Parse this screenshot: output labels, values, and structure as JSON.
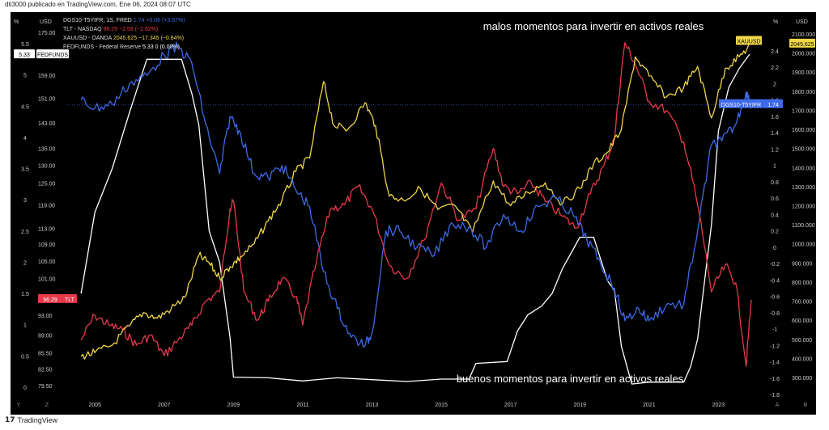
{
  "header": {
    "text": "dti3000 publicado en TradingView.com, Ene 06, 2024 08:07 UTC"
  },
  "footer": {
    "logo": "17",
    "brand": "TradingView"
  },
  "chart_data": {
    "type": "line",
    "x_ticks": [
      "2005",
      "2007",
      "2009",
      "2011",
      "2013",
      "2015",
      "2017",
      "2019",
      "2021",
      "2023"
    ],
    "annotations": {
      "top": "malos momentos para invertir en activos reales",
      "bottom": "buenos momentos para invertir en activos reales"
    },
    "legend": [
      {
        "name": "DGS10-T5YIFR, 1S, FRED",
        "value": "1.74",
        "change": "+0.06 (+3.57%)",
        "color": "#3e6ae8"
      },
      {
        "name": "TLT - NASDAQ",
        "value": "96.29",
        "change": "−2.59 (−2.62%)",
        "color": "#e8394b"
      },
      {
        "name": "XAUUSD - OANDA",
        "value": "2045.625",
        "change": "−17.345 (−0.84%)",
        "color": "#f0d64a"
      },
      {
        "name": "FEDFUNDS - Federal Reserve",
        "value": "5.33",
        "change": "0 (0.00%)",
        "color": "#ffffff"
      }
    ],
    "left_axis_fed": {
      "unit": "%",
      "ticks": [
        "5.5",
        "5",
        "4.5",
        "4",
        "3.5",
        "3",
        "2.5",
        "2",
        "1.5",
        "1",
        "0.5",
        "0"
      ],
      "values": [
        5.5,
        5,
        4.5,
        4,
        3.5,
        3,
        2.5,
        2,
        1.5,
        1,
        0.5,
        0
      ]
    },
    "left_axis_tlt": {
      "unit": "USD",
      "ticks": [
        "175.00",
        "167.00",
        "159.00",
        "151.00",
        "143.00",
        "135.00",
        "130.00",
        "125.00",
        "119.00",
        "113.00",
        "109.00",
        "105.00",
        "101.00",
        "93.00",
        "89.00",
        "85.50",
        "82.50",
        "79.50"
      ],
      "values": [
        175,
        167,
        159,
        151,
        143,
        135,
        130,
        125,
        119,
        113,
        109,
        105,
        101,
        93,
        89,
        85.5,
        82.5,
        79.5
      ]
    },
    "right_axis_spread": {
      "unit": "%",
      "ticks": [
        "2.4",
        "2.2",
        "2",
        "1.8",
        "1.6",
        "1.4",
        "1.2",
        "1",
        "0.8",
        "0.6",
        "0.4",
        "0.2",
        "0",
        "-0.2",
        "-0.4",
        "-0.6",
        "-0.8",
        "-1",
        "-1.2",
        "-1.4",
        "-1.6",
        "-1.8"
      ],
      "values": [
        2.4,
        2.2,
        2,
        1.8,
        1.6,
        1.4,
        1.2,
        1,
        0.8,
        0.6,
        0.4,
        0.2,
        0,
        -0.2,
        -0.4,
        -0.6,
        -0.8,
        -1,
        -1.2,
        -1.4,
        -1.6,
        -1.8
      ]
    },
    "right_axis_gold": {
      "unit": "USD",
      "ticks": [
        "2100.000",
        "2000.000",
        "1900.000",
        "1800.000",
        "1700.000",
        "1600.000",
        "1500.000",
        "1400.000",
        "1300.000",
        "1200.000",
        "1100.000",
        "1000.000",
        "900.000",
        "800.000",
        "700.000",
        "600.000",
        "500.000",
        "400.000",
        "300.000"
      ],
      "values": [
        2100,
        2000,
        1900,
        1800,
        1700,
        1600,
        1500,
        1400,
        1300,
        1200,
        1100,
        1000,
        900,
        800,
        700,
        600,
        500,
        400,
        300
      ]
    },
    "price_labels": {
      "fed": "5.33",
      "fed_name": "FEDFUNDS",
      "tlt": "96.29",
      "tlt_name": "TLT",
      "gold": "2045.625",
      "gold_name": "XAUUSD",
      "spread": "1.74",
      "spread_name": "DGS10-T5YIFR"
    },
    "corner_labels": {
      "bl1": "Y",
      "bl2": "Z",
      "br1": "A",
      "br2": "B"
    },
    "series": [
      {
        "name": "FEDFUNDS",
        "color": "#ffffff",
        "x": [
          2004.6,
          2005.0,
          2005.5,
          2006.0,
          2006.5,
          2007.0,
          2007.5,
          2007.8,
          2008.0,
          2008.3,
          2008.6,
          2008.9,
          2009.0,
          2010.0,
          2011.0,
          2012.0,
          2013.0,
          2014.0,
          2015.0,
          2015.8,
          2016.0,
          2016.9,
          2017.2,
          2017.5,
          2017.9,
          2018.2,
          2018.5,
          2018.8,
          2019.0,
          2019.4,
          2019.8,
          2020.0,
          2020.2,
          2020.5,
          2021.0,
          2022.0,
          2022.2,
          2022.4,
          2022.6,
          2022.8,
          2023.0,
          2023.3,
          2023.6,
          2023.9
        ],
        "y": [
          1.5,
          2.8,
          3.5,
          4.4,
          5.25,
          5.25,
          5.25,
          4.7,
          4.2,
          2.5,
          2.0,
          0.8,
          0.16,
          0.15,
          0.1,
          0.15,
          0.12,
          0.09,
          0.13,
          0.13,
          0.38,
          0.41,
          0.9,
          1.16,
          1.3,
          1.5,
          1.9,
          2.2,
          2.4,
          2.4,
          1.7,
          1.55,
          0.65,
          0.05,
          0.08,
          0.08,
          0.33,
          0.77,
          1.7,
          2.6,
          4.1,
          4.8,
          5.1,
          5.33
        ]
      },
      {
        "name": "TLT",
        "color": "#e8394b",
        "x": [
          2004.6,
          2005.0,
          2005.4,
          2005.8,
          2006.2,
          2006.6,
          2007.0,
          2007.4,
          2007.8,
          2008.2,
          2008.6,
          2008.9,
          2009.0,
          2009.3,
          2009.7,
          2010.0,
          2010.4,
          2010.8,
          2011.0,
          2011.4,
          2011.8,
          2012.2,
          2012.6,
          2013.0,
          2013.5,
          2014.0,
          2014.5,
          2015.0,
          2015.5,
          2016.0,
          2016.5,
          2016.8,
          2017.2,
          2017.6,
          2018.0,
          2018.5,
          2018.9,
          2019.3,
          2019.7,
          2020.0,
          2020.3,
          2020.6,
          2021.0,
          2021.5,
          2022.0,
          2022.4,
          2022.8,
          2023.2,
          2023.5,
          2023.8,
          2023.95
        ],
        "y": [
          88,
          93,
          91,
          90,
          87,
          89,
          85,
          88,
          91,
          96,
          98,
          118,
          120,
          98,
          92,
          96,
          101,
          97,
          91,
          105,
          118,
          119,
          124,
          118,
          104,
          101,
          110,
          125,
          115,
          118,
          135,
          124,
          122,
          125,
          120,
          116,
          113,
          122,
          130,
          138,
          171,
          163,
          150,
          147,
          137,
          119,
          98,
          104,
          100,
          83,
          96.29
        ]
      },
      {
        "name": "XAUUSD",
        "color": "#f0d64a",
        "x": [
          2004.6,
          2005.0,
          2005.5,
          2006.0,
          2006.4,
          2006.8,
          2007.2,
          2007.6,
          2008.0,
          2008.3,
          2008.6,
          2008.9,
          2009.2,
          2009.6,
          2010.0,
          2010.4,
          2010.8,
          2011.2,
          2011.6,
          2011.9,
          2012.3,
          2012.8,
          2013.1,
          2013.5,
          2013.9,
          2014.4,
          2014.9,
          2015.4,
          2015.9,
          2016.5,
          2017.0,
          2017.5,
          2018.0,
          2018.5,
          2019.0,
          2019.4,
          2019.8,
          2020.2,
          2020.6,
          2021.0,
          2021.5,
          2022.0,
          2022.4,
          2022.8,
          2023.2,
          2023.6,
          2023.95
        ],
        "y": [
          410,
          430,
          470,
          570,
          640,
          610,
          660,
          720,
          940,
          900,
          820,
          880,
          930,
          1000,
          1120,
          1230,
          1380,
          1450,
          1850,
          1620,
          1600,
          1740,
          1620,
          1250,
          1230,
          1290,
          1180,
          1200,
          1060,
          1330,
          1200,
          1270,
          1320,
          1210,
          1290,
          1420,
          1480,
          1600,
          1980,
          1880,
          1770,
          1820,
          1930,
          1660,
          1920,
          1980,
          2045.625
        ]
      },
      {
        "name": "DGS10-T5YIFR",
        "color": "#3e6ae8",
        "x": [
          2004.6,
          2005.0,
          2005.5,
          2006.0,
          2006.5,
          2007.0,
          2007.4,
          2007.8,
          2008.2,
          2008.6,
          2008.9,
          2009.2,
          2009.6,
          2010.0,
          2010.4,
          2010.8,
          2011.2,
          2011.6,
          2012.0,
          2012.4,
          2012.8,
          2013.0,
          2013.4,
          2013.8,
          2014.3,
          2014.8,
          2015.3,
          2015.8,
          2016.3,
          2016.8,
          2017.3,
          2017.8,
          2018.3,
          2018.8,
          2019.2,
          2019.6,
          2020.0,
          2020.3,
          2020.7,
          2021.0,
          2021.5,
          2022.0,
          2022.4,
          2022.8,
          2023.1,
          2023.5,
          2023.8,
          2023.95
        ],
        "y": [
          1.8,
          1.7,
          1.75,
          2.0,
          2.1,
          2.35,
          2.45,
          2.25,
          1.5,
          0.9,
          1.6,
          1.4,
          0.9,
          0.85,
          1.0,
          0.7,
          0.5,
          -0.3,
          -0.75,
          -1.1,
          -1.2,
          -1.05,
          0.2,
          0.2,
          0.0,
          -0.1,
          0.3,
          0.25,
          0.0,
          0.4,
          0.2,
          0.5,
          0.6,
          0.4,
          0.1,
          -0.2,
          -0.5,
          -0.9,
          -0.75,
          -0.9,
          -0.7,
          -0.7,
          0.2,
          1.25,
          1.3,
          1.5,
          1.9,
          1.74
        ]
      }
    ]
  }
}
